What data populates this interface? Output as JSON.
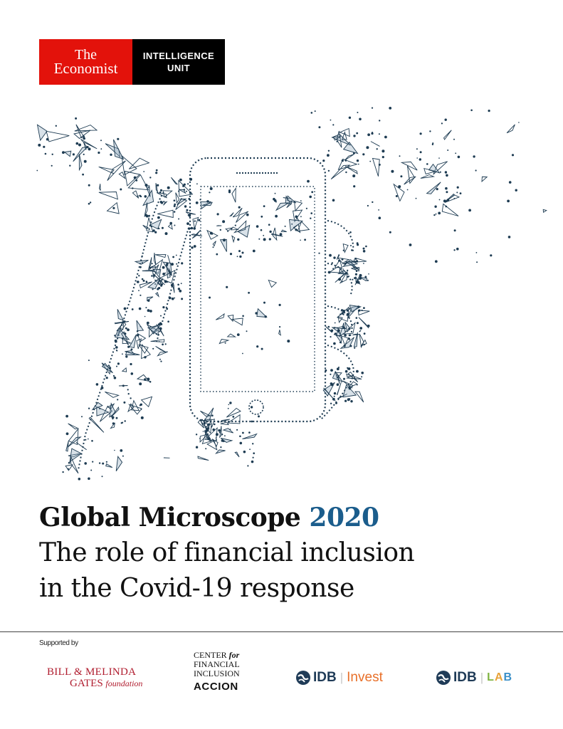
{
  "masthead": {
    "economist_line1": "The",
    "economist_line2": "Economist",
    "unit_line1": "INTELLIGENCE",
    "unit_line2": "UNIT",
    "red_color": "#e3120b"
  },
  "illustration": {
    "description_icon": "hand-holding-phone-icon",
    "color": "#1d3b52"
  },
  "title": {
    "main": "Global Microscope",
    "year": "2020",
    "year_color": "#1b5d8c",
    "subtitle_line1": "The role of financial inclusion",
    "subtitle_line2": "in the Covid-19 response"
  },
  "footer": {
    "supported_by": "Supported by",
    "gates_line1": "BILL & MELINDA",
    "gates_line2": "GATES",
    "gates_foundation": "foundation",
    "cfi_line1": "CENTER",
    "cfi_for": "for",
    "cfi_line2": "FINANCIAL",
    "cfi_line3": "INCLUSION",
    "cfi_accion": "ACCION",
    "idb_invest_name": "IDB",
    "idb_invest_suffix": "Invest",
    "idb_lab_name": "IDB",
    "idb_lab_l": "L",
    "idb_lab_a": "A",
    "idb_lab_b": "B"
  }
}
